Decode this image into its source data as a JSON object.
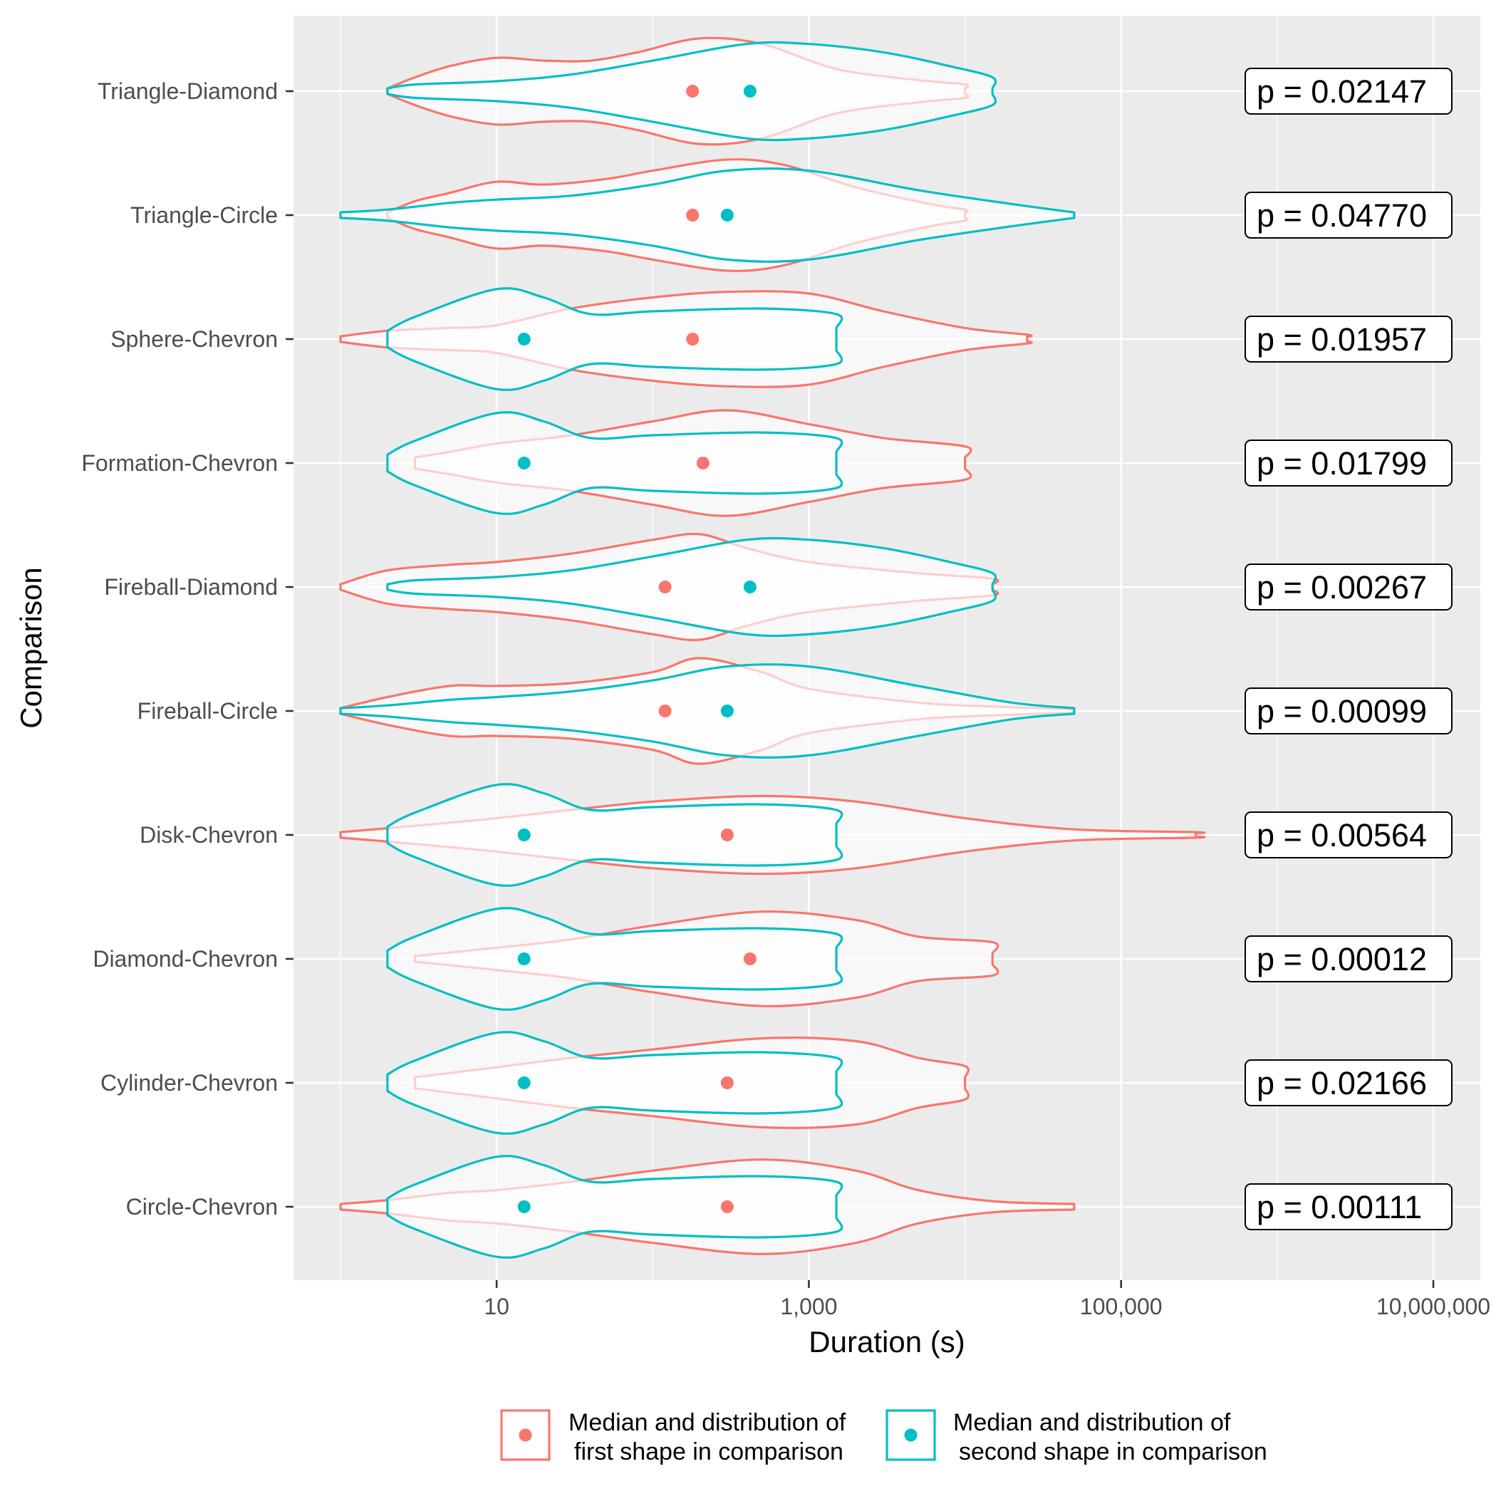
{
  "chart_data": {
    "type": "violin",
    "xlabel": "Duration (s)",
    "ylabel": "Comparison",
    "x_scale": "log10",
    "xlim": [
      0.5,
      20000000
    ],
    "x_ticks": [
      10,
      1000,
      100000,
      10000000
    ],
    "x_tick_labels": [
      "10",
      "1,000",
      "100,000",
      "10,000,000"
    ],
    "grid": true,
    "legend_position": "bottom",
    "colors": {
      "first": "#F8766D",
      "second": "#00BFC4",
      "panel": "#EBEBEB",
      "grid": "#FFFFFF"
    },
    "legend": [
      {
        "key": "first",
        "line1": "Median and distribution of",
        "line2": "first shape in comparison"
      },
      {
        "key": "second",
        "line1": "Median and distribution of",
        "line2": "second shape in comparison"
      }
    ],
    "categories": [
      "Triangle-Diamond",
      "Triangle-Circle",
      "Sphere-Chevron",
      "Formation-Chevron",
      "Fireball-Diamond",
      "Fireball-Circle",
      "Disk-Chevron",
      "Diamond-Chevron",
      "Cylinder-Chevron",
      "Circle-Chevron"
    ],
    "p_value_prefix": "p = ",
    "p_values": [
      "0.02147",
      "0.04770",
      "0.01957",
      "0.01799",
      "0.00267",
      "0.00099",
      "0.00564",
      "0.00012",
      "0.02166",
      "0.00111"
    ],
    "series": [
      {
        "key": "first",
        "medians": [
          180,
          180,
          180,
          210,
          120,
          120,
          300,
          420,
          300,
          300
        ],
        "distributions": [
          [
            [
              2,
              0.05
            ],
            [
              3,
              0.25
            ],
            [
              5,
              0.45
            ],
            [
              10,
              0.6
            ],
            [
              20,
              0.55
            ],
            [
              40,
              0.55
            ],
            [
              80,
              0.7
            ],
            [
              200,
              0.95
            ],
            [
              500,
              0.85
            ],
            [
              1500,
              0.4
            ],
            [
              5000,
              0.2
            ],
            [
              10000,
              0.12
            ],
            [
              10000,
              0.05
            ]
          ],
          [
            [
              2,
              0.05
            ],
            [
              3,
              0.25
            ],
            [
              5,
              0.4
            ],
            [
              10,
              0.6
            ],
            [
              20,
              0.55
            ],
            [
              50,
              0.65
            ],
            [
              100,
              0.8
            ],
            [
              300,
              1.0
            ],
            [
              700,
              0.9
            ],
            [
              2000,
              0.5
            ],
            [
              6000,
              0.2
            ],
            [
              10000,
              0.1
            ],
            [
              10000,
              0.05
            ]
          ],
          [
            [
              1,
              0.05
            ],
            [
              2,
              0.15
            ],
            [
              5,
              0.2
            ],
            [
              10,
              0.25
            ],
            [
              30,
              0.55
            ],
            [
              100,
              0.75
            ],
            [
              300,
              0.85
            ],
            [
              1000,
              0.82
            ],
            [
              3000,
              0.5
            ],
            [
              10000,
              0.2
            ],
            [
              25000,
              0.08
            ],
            [
              25000,
              0.04
            ]
          ],
          [
            [
              3,
              0.1
            ],
            [
              5,
              0.2
            ],
            [
              10,
              0.35
            ],
            [
              30,
              0.5
            ],
            [
              100,
              0.75
            ],
            [
              300,
              0.95
            ],
            [
              1000,
              0.7
            ],
            [
              3000,
              0.45
            ],
            [
              10000,
              0.3
            ],
            [
              10000,
              0.1
            ]
          ],
          [
            [
              1,
              0.05
            ],
            [
              2,
              0.3
            ],
            [
              5,
              0.4
            ],
            [
              10,
              0.45
            ],
            [
              30,
              0.6
            ],
            [
              100,
              0.85
            ],
            [
              200,
              0.95
            ],
            [
              400,
              0.7
            ],
            [
              1000,
              0.45
            ],
            [
              5000,
              0.25
            ],
            [
              15000,
              0.15
            ],
            [
              15000,
              0.05
            ]
          ],
          [
            [
              1,
              0.05
            ],
            [
              2,
              0.25
            ],
            [
              5,
              0.45
            ],
            [
              10,
              0.45
            ],
            [
              30,
              0.5
            ],
            [
              100,
              0.7
            ],
            [
              200,
              0.95
            ],
            [
              500,
              0.7
            ],
            [
              1000,
              0.4
            ],
            [
              5000,
              0.15
            ],
            [
              15000,
              0.08
            ],
            [
              50000,
              0.03
            ]
          ],
          [
            [
              1,
              0.05
            ],
            [
              2,
              0.12
            ],
            [
              5,
              0.22
            ],
            [
              10,
              0.3
            ],
            [
              30,
              0.45
            ],
            [
              100,
              0.6
            ],
            [
              500,
              0.7
            ],
            [
              2000,
              0.6
            ],
            [
              10000,
              0.3
            ],
            [
              50000,
              0.1
            ],
            [
              300000,
              0.05
            ],
            [
              300000,
              0.03
            ]
          ],
          [
            [
              3,
              0.05
            ],
            [
              10,
              0.2
            ],
            [
              30,
              0.35
            ],
            [
              100,
              0.6
            ],
            [
              500,
              0.85
            ],
            [
              2000,
              0.7
            ],
            [
              5000,
              0.4
            ],
            [
              15000,
              0.3
            ],
            [
              15000,
              0.1
            ]
          ],
          [
            [
              3,
              0.1
            ],
            [
              10,
              0.28
            ],
            [
              30,
              0.45
            ],
            [
              100,
              0.6
            ],
            [
              500,
              0.8
            ],
            [
              2000,
              0.75
            ],
            [
              5000,
              0.45
            ],
            [
              10000,
              0.3
            ],
            [
              10000,
              0.1
            ]
          ],
          [
            [
              1,
              0.05
            ],
            [
              2,
              0.12
            ],
            [
              5,
              0.25
            ],
            [
              10,
              0.3
            ],
            [
              30,
              0.45
            ],
            [
              100,
              0.65
            ],
            [
              500,
              0.85
            ],
            [
              2000,
              0.65
            ],
            [
              5000,
              0.3
            ],
            [
              15000,
              0.1
            ],
            [
              50000,
              0.05
            ]
          ]
        ]
      },
      {
        "key": "second",
        "medians": [
          420,
          300,
          15,
          15,
          420,
          300,
          15,
          15,
          15,
          15
        ],
        "distributions": [
          [
            [
              2,
              0.05
            ],
            [
              3,
              0.12
            ],
            [
              10,
              0.18
            ],
            [
              30,
              0.3
            ],
            [
              100,
              0.55
            ],
            [
              400,
              0.85
            ],
            [
              1000,
              0.85
            ],
            [
              3000,
              0.7
            ],
            [
              8000,
              0.45
            ],
            [
              15000,
              0.25
            ],
            [
              15000,
              0.05
            ]
          ],
          [
            [
              1,
              0.05
            ],
            [
              2,
              0.1
            ],
            [
              5,
              0.22
            ],
            [
              10,
              0.28
            ],
            [
              30,
              0.35
            ],
            [
              100,
              0.55
            ],
            [
              300,
              0.8
            ],
            [
              1000,
              0.8
            ],
            [
              5000,
              0.45
            ],
            [
              20000,
              0.2
            ],
            [
              50000,
              0.05
            ]
          ],
          [
            [
              2,
              0.15
            ],
            [
              3,
              0.4
            ],
            [
              10,
              0.9
            ],
            [
              20,
              0.75
            ],
            [
              40,
              0.45
            ],
            [
              100,
              0.5
            ],
            [
              500,
              0.55
            ],
            [
              1500,
              0.45
            ],
            [
              1500,
              0.2
            ]
          ],
          [
            [
              2,
              0.15
            ],
            [
              3,
              0.4
            ],
            [
              10,
              0.9
            ],
            [
              20,
              0.75
            ],
            [
              40,
              0.45
            ],
            [
              100,
              0.5
            ],
            [
              500,
              0.55
            ],
            [
              1500,
              0.45
            ],
            [
              1500,
              0.2
            ]
          ],
          [
            [
              2,
              0.05
            ],
            [
              3,
              0.12
            ],
            [
              10,
              0.18
            ],
            [
              30,
              0.3
            ],
            [
              100,
              0.55
            ],
            [
              400,
              0.85
            ],
            [
              1000,
              0.85
            ],
            [
              3000,
              0.7
            ],
            [
              8000,
              0.45
            ],
            [
              15000,
              0.25
            ],
            [
              15000,
              0.05
            ]
          ],
          [
            [
              1,
              0.05
            ],
            [
              2,
              0.1
            ],
            [
              5,
              0.2
            ],
            [
              10,
              0.25
            ],
            [
              30,
              0.35
            ],
            [
              100,
              0.55
            ],
            [
              300,
              0.8
            ],
            [
              1000,
              0.8
            ],
            [
              5000,
              0.45
            ],
            [
              20000,
              0.15
            ],
            [
              50000,
              0.05
            ]
          ],
          [
            [
              2,
              0.15
            ],
            [
              3,
              0.4
            ],
            [
              10,
              0.9
            ],
            [
              20,
              0.75
            ],
            [
              40,
              0.45
            ],
            [
              100,
              0.5
            ],
            [
              500,
              0.55
            ],
            [
              1500,
              0.45
            ],
            [
              1500,
              0.2
            ]
          ],
          [
            [
              2,
              0.15
            ],
            [
              3,
              0.4
            ],
            [
              10,
              0.9
            ],
            [
              20,
              0.75
            ],
            [
              40,
              0.45
            ],
            [
              100,
              0.5
            ],
            [
              500,
              0.55
            ],
            [
              1500,
              0.45
            ],
            [
              1500,
              0.2
            ]
          ],
          [
            [
              2,
              0.15
            ],
            [
              3,
              0.4
            ],
            [
              10,
              0.9
            ],
            [
              20,
              0.75
            ],
            [
              40,
              0.45
            ],
            [
              100,
              0.5
            ],
            [
              500,
              0.55
            ],
            [
              1500,
              0.45
            ],
            [
              1500,
              0.2
            ]
          ],
          [
            [
              2,
              0.15
            ],
            [
              3,
              0.4
            ],
            [
              10,
              0.9
            ],
            [
              20,
              0.75
            ],
            [
              40,
              0.45
            ],
            [
              100,
              0.5
            ],
            [
              500,
              0.55
            ],
            [
              1500,
              0.45
            ],
            [
              1500,
              0.2
            ]
          ]
        ]
      }
    ]
  }
}
